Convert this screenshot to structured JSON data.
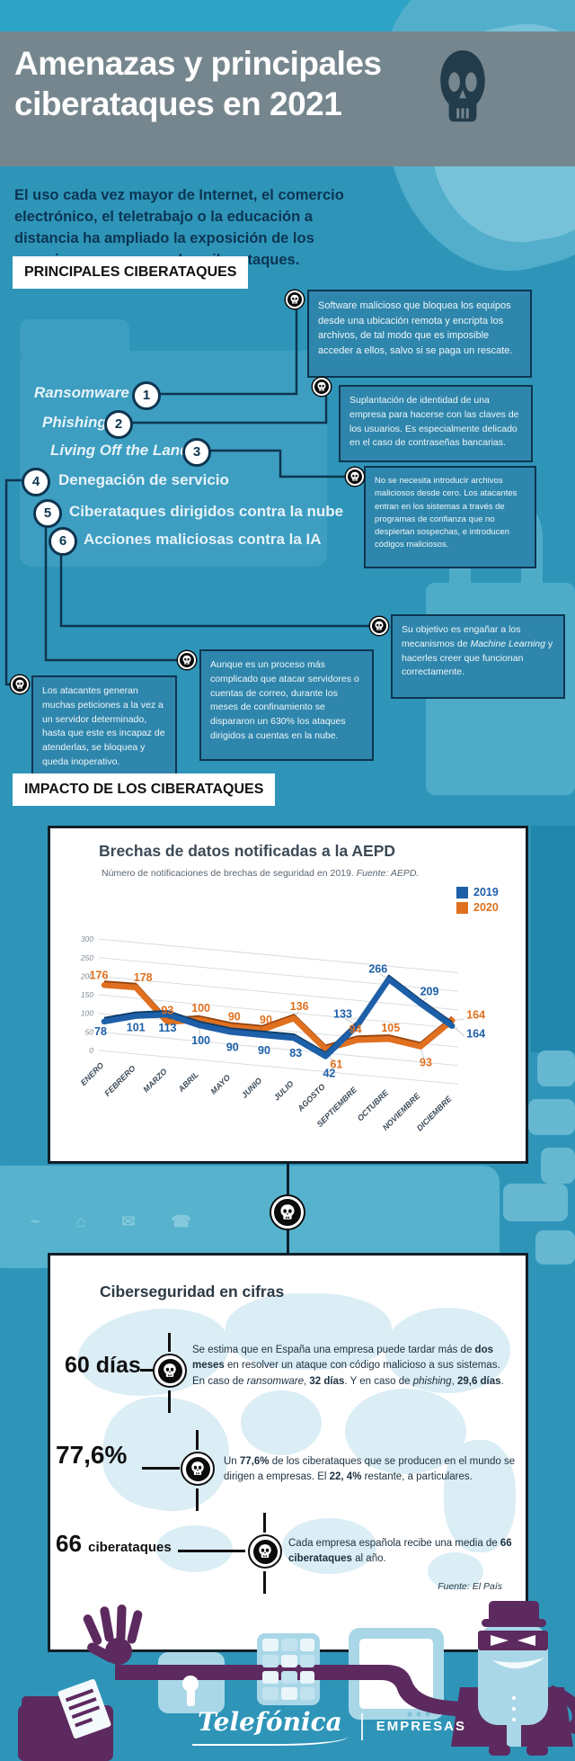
{
  "header": {
    "title": "Amenazas y principales ciberataques en 2021"
  },
  "intro": {
    "text": "El uso cada vez mayor de Internet, el comercio electrónico, el teletrabajo o la educación a distancia ha ampliado la exposición de los usuarios y empresas a los ciberataques."
  },
  "sections": {
    "main_attacks_label": "PRINCIPALES CIBERATAQUES",
    "impact_label": "IMPACTO DE LOS CIBERATAQUES"
  },
  "attacks": {
    "items": [
      {
        "num": "1",
        "label": "Ransomware",
        "desc": "Software malicioso que bloquea los equipos desde una ubicación remota y encripta los archivos, de tal modo que es imposible acceder a ellos, salvo si se paga un rescate."
      },
      {
        "num": "2",
        "label": "Phishing",
        "desc": "Suplantación de identidad de una empresa para hacerse con las claves de los usuarios. Es especialmente delicado en el caso de contraseñas bancarias."
      },
      {
        "num": "3",
        "label": "Living Off the Land",
        "desc": "No se necesita introducir archivos maliciosos desde cero. Los atacantes entran en los sistemas a través de programas de confianza que no despiertan sospechas, e introducen códigos maliciosos."
      },
      {
        "num": "4",
        "label": "Denegación de servicio",
        "desc": "Los atacantes generan muchas peticiones a la vez a un servidor determinado, hasta que este es incapaz de atenderlas, se bloquea y queda inoperativo."
      },
      {
        "num": "5",
        "label": "Ciberataques dirigidos contra la nube",
        "desc": "Aunque es un proceso más complicado que atacar servidores o cuentas de correo, durante los meses de confinamiento se dispararon un 630% los ataques dirigidos a cuentas en la nube."
      },
      {
        "num": "6",
        "label": "Acciones maliciosas contra la IA",
        "desc": "Su objetivo es engañar a los mecanismos de <i>Machine Learning</i> y hacerles creer que funcionan correctamente."
      }
    ]
  },
  "chart_card": {
    "title": "Brechas de datos notificadas a la AEPD",
    "subtitle_html": "Número de notificaciones de brechas de seguridad en 2019. <i>Fuente: AEPD.</i>"
  },
  "chart_data": {
    "type": "line",
    "title": "Brechas de datos notificadas a la AEPD",
    "subtitle": "Número de notificaciones de brechas de seguridad en 2019. Fuente: AEPD.",
    "categories": [
      "ENERO",
      "FEBRERO",
      "MARZO",
      "ABRIL",
      "MAYO",
      "JUNIO",
      "JULIO",
      "AGOSTO",
      "SEPTIEMBRE",
      "OCTUBRE",
      "NOVIEMBRE",
      "DICIEMBRE"
    ],
    "series": [
      {
        "name": "2019",
        "color": "#1D5FA8",
        "edge": "#0F3B66",
        "values": [
          78,
          101,
          113,
          100,
          90,
          90,
          83,
          42,
          133,
          266,
          209,
          164
        ]
      },
      {
        "name": "2020",
        "color": "#E0701F",
        "edge": "#94430F",
        "values": [
          176,
          178,
          93,
          100,
          90,
          90,
          136,
          61,
          94,
          105,
          93,
          164
        ]
      }
    ],
    "ylim": [
      0,
      300
    ],
    "yticks": [
      0,
      50,
      100,
      150,
      200,
      250,
      300
    ],
    "grid": true,
    "legend_position": "top-right"
  },
  "stats_card": {
    "title": "Ciberseguridad en cifras",
    "stats": [
      {
        "value": "60 días",
        "unit": "",
        "text_html": "Se estima que en España una empresa puede tardar más de <b>dos meses</b> en resolver un ataque con código malicioso a sus sistemas. En caso de <i>ransomware</i>, <b>32 días</b>. Y en caso de <i>phishing</i>, <b>29,6 días</b>."
      },
      {
        "value": "77,6%",
        "unit": "",
        "text_html": "Un <b>77,6%</b> de los ciberataques que se producen en el mundo se dirigen a empresas. El <b>22, 4%</b> restante, a particulares."
      },
      {
        "value": "66",
        "unit": "ciberataques",
        "text_html": "Cada empresa española recibe una media de <b>66 ciberataques</b> al año."
      }
    ],
    "source": "Fuente: El País"
  },
  "footer": {
    "brand": "Telefónica",
    "division": "EMPRESAS"
  },
  "colors": {
    "background": "#2E95B9",
    "banner_gray": "#76868E",
    "dark_navy": "#0E3550",
    "callout_bg": "#2F86AC",
    "blue_2019": "#1D5FA8",
    "orange_2020": "#E0701F",
    "purple": "#5D2A5F",
    "light_blue": "#A9D7E7"
  }
}
